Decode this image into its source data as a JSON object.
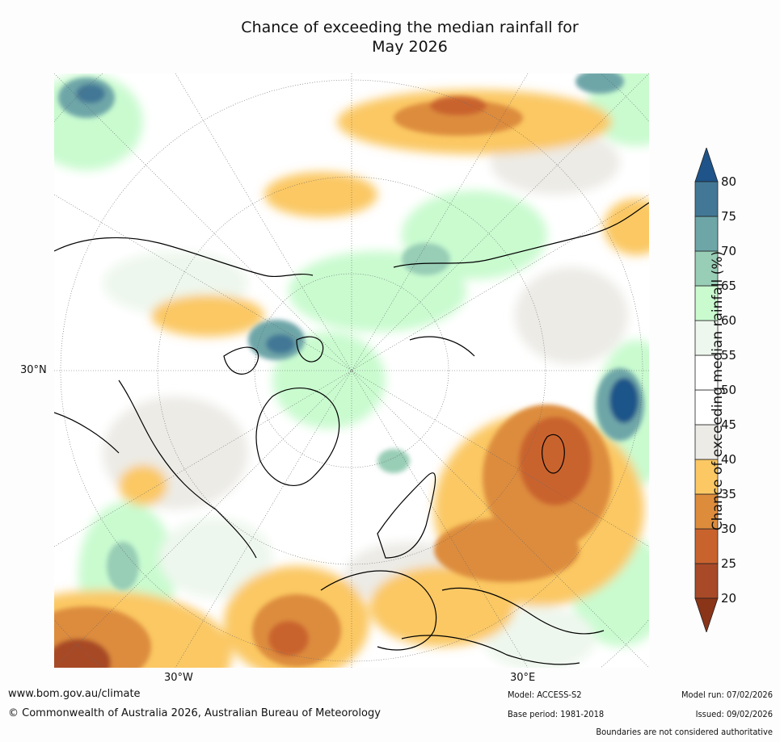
{
  "title_line1": "Chance of exceeding the median rainfall for",
  "title_line2": "May 2026",
  "ticks": {
    "left": "30°N",
    "bottom_left": "30°W",
    "bottom_right": "30°E"
  },
  "colorbar": {
    "label": "Chance of exceeding median rainfall (%)",
    "ticks": [
      "20",
      "25",
      "30",
      "35",
      "40",
      "45",
      "50",
      "55",
      "60",
      "65",
      "70",
      "75",
      "80"
    ],
    "colors": [
      "#a84a28",
      "#c9632e",
      "#dd8c3c",
      "#fbc864",
      "#ecebe6",
      "#ffffff",
      "#ffffff",
      "#eef7ee",
      "#c9fbcf",
      "#98cdb6",
      "#6ea6a8",
      "#427896"
    ],
    "under_color": "#8a3418",
    "over_color": "#1e5489"
  },
  "footer": {
    "website": "www.bom.gov.au/climate",
    "copyright": "© Commonwealth of Australia 2026, Australian Bureau of Meteorology",
    "model": "Model: ACCESS-S2",
    "base_period": "Base period: 1981-2018",
    "model_run": "Model run: 07/02/2026",
    "issued": "Issued: 09/02/2026",
    "disclaimer": "Boundaries are not considered authoritative"
  }
}
